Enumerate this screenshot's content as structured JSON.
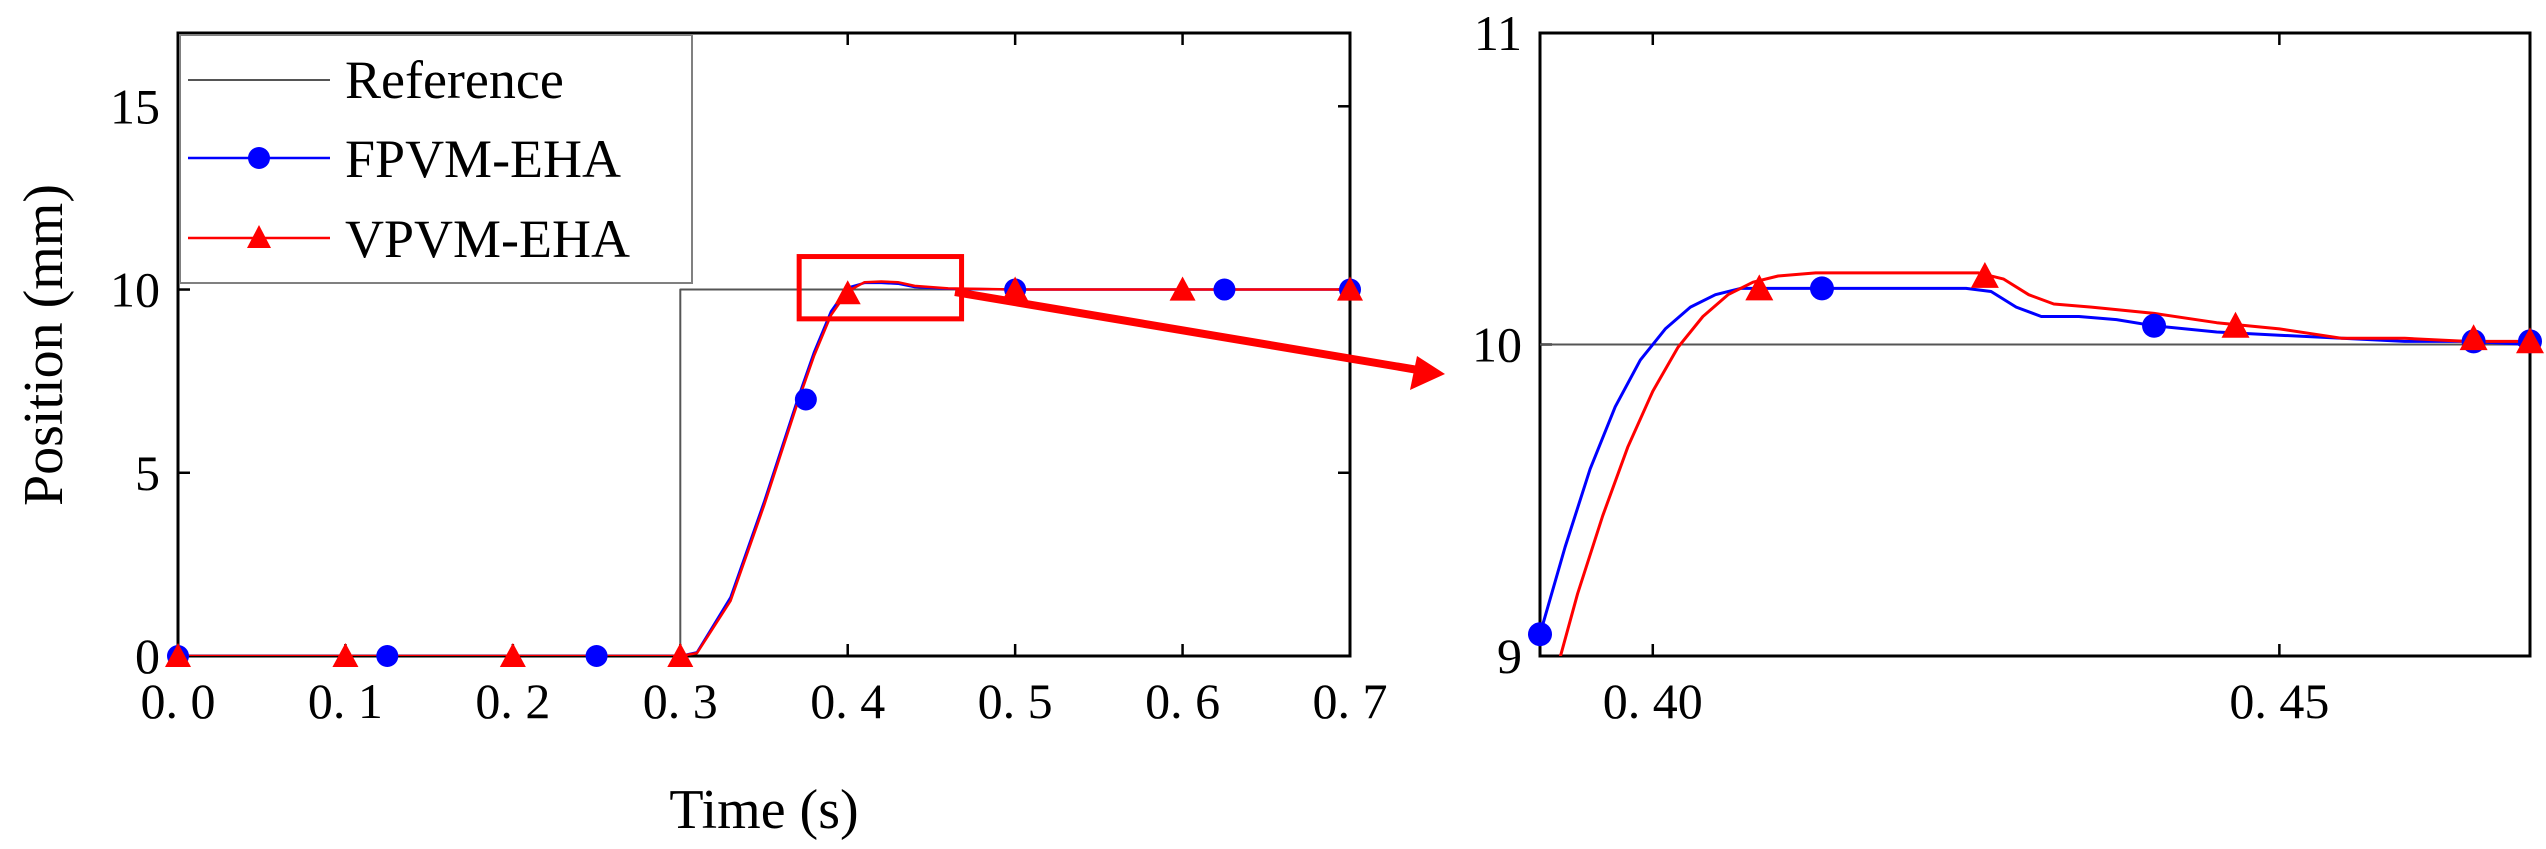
{
  "chart_data": [
    {
      "type": "line",
      "xlabel": "Time (s)",
      "ylabel": "Position (mm)",
      "xlim": [
        0,
        0.7
      ],
      "ylim": [
        0,
        17
      ],
      "x_ticks": [
        "0. 0",
        "0. 1",
        "0. 2",
        "0. 3",
        "0. 4",
        "0. 5",
        "0. 6",
        "0. 7"
      ],
      "x_tick_values": [
        0,
        0.1,
        0.2,
        0.3,
        0.4,
        0.5,
        0.6,
        0.7
      ],
      "y_ticks": [
        "0",
        "5",
        "10",
        "15"
      ],
      "y_tick_values": [
        0,
        5,
        10,
        15
      ],
      "legend": {
        "position": "top-left",
        "entries": [
          "Reference",
          "FPVM-EHA",
          "VPVM-EHA"
        ]
      },
      "series": [
        {
          "name": "Reference",
          "color": "#555555",
          "marker": "none",
          "x": [
            0,
            0.3,
            0.3,
            0.7
          ],
          "y": [
            0,
            0,
            10,
            10
          ]
        },
        {
          "name": "FPVM-EHA",
          "color": "#0000ff",
          "marker": "circle",
          "x": [
            0,
            0.3,
            0.31,
            0.33,
            0.35,
            0.37,
            0.38,
            0.39,
            0.4,
            0.41,
            0.42,
            0.43,
            0.44,
            0.46,
            0.5,
            0.6,
            0.7
          ],
          "y": [
            0,
            0,
            0.1,
            1.6,
            4.2,
            7.0,
            8.3,
            9.4,
            10.05,
            10.18,
            10.18,
            10.16,
            10.07,
            10.02,
            10.0,
            10.0,
            10.0
          ],
          "marker_x": [
            0,
            0.125,
            0.25,
            0.375,
            0.5,
            0.625,
            0.7
          ],
          "marker_y": [
            0,
            0,
            0,
            7.0,
            10.0,
            10.0,
            10.0
          ]
        },
        {
          "name": "VPVM-EHA",
          "color": "#ff0000",
          "marker": "triangle",
          "x": [
            0,
            0.3,
            0.31,
            0.33,
            0.35,
            0.37,
            0.38,
            0.39,
            0.4,
            0.41,
            0.42,
            0.43,
            0.44,
            0.46,
            0.5,
            0.6,
            0.7
          ],
          "y": [
            0,
            0,
            0.08,
            1.5,
            4.1,
            6.9,
            8.2,
            9.3,
            9.95,
            10.2,
            10.22,
            10.2,
            10.1,
            10.03,
            10.0,
            10.0,
            10.0
          ],
          "marker_x": [
            0,
            0.1,
            0.2,
            0.3,
            0.4,
            0.5,
            0.6,
            0.7
          ],
          "marker_y": [
            0,
            0,
            0,
            0,
            9.9,
            10.0,
            10.0,
            10.0
          ]
        }
      ],
      "annotations": [
        "zoom rectangle around t = 0.37–0.46 s, y ≈ 9.2–10.9 mm with red arrow to inset"
      ]
    },
    {
      "type": "line",
      "xlabel": "",
      "ylabel": "",
      "xlim": [
        0.391,
        0.47
      ],
      "ylim": [
        9,
        11
      ],
      "x_ticks": [
        "0. 40",
        "0. 45"
      ],
      "x_tick_values": [
        0.4,
        0.45
      ],
      "y_ticks": [
        "9",
        "10",
        "11"
      ],
      "y_tick_values": [
        9,
        10,
        11
      ],
      "series": [
        {
          "name": "Reference",
          "color": "#555555",
          "x": [
            0.391,
            0.47
          ],
          "y": [
            10,
            10
          ]
        },
        {
          "name": "FPVM-EHA",
          "color": "#0000ff",
          "x": [
            0.391,
            0.393,
            0.395,
            0.397,
            0.399,
            0.401,
            0.403,
            0.405,
            0.407,
            0.409,
            0.412,
            0.415,
            0.42,
            0.425,
            0.427,
            0.429,
            0.431,
            0.434,
            0.437,
            0.44,
            0.445,
            0.45,
            0.455,
            0.46,
            0.465,
            0.47
          ],
          "y": [
            9.07,
            9.35,
            9.6,
            9.8,
            9.95,
            10.05,
            10.12,
            10.16,
            10.18,
            10.18,
            10.18,
            10.18,
            10.18,
            10.18,
            10.17,
            10.12,
            10.09,
            10.09,
            10.08,
            10.06,
            10.04,
            10.03,
            10.02,
            10.01,
            10.01,
            10.0
          ],
          "marker_x": [
            0.391,
            0.4135,
            0.44,
            0.4655,
            0.47
          ],
          "marker_y": [
            9.07,
            10.18,
            10.06,
            10.01,
            10.01
          ]
        },
        {
          "name": "VPVM-EHA",
          "color": "#ff0000",
          "x": [
            0.3925,
            0.394,
            0.396,
            0.398,
            0.4,
            0.402,
            0.404,
            0.406,
            0.408,
            0.41,
            0.413,
            0.42,
            0.426,
            0.428,
            0.43,
            0.432,
            0.435,
            0.44,
            0.445,
            0.45,
            0.455,
            0.46,
            0.465,
            0.47
          ],
          "y": [
            8.98,
            9.2,
            9.45,
            9.67,
            9.85,
            9.99,
            10.09,
            10.16,
            10.2,
            10.22,
            10.23,
            10.23,
            10.23,
            10.21,
            10.16,
            10.13,
            10.12,
            10.1,
            10.07,
            10.05,
            10.02,
            10.02,
            10.01,
            10.01
          ],
          "marker_x": [
            0.4085,
            0.4265,
            0.4465,
            0.4655,
            0.47
          ],
          "marker_y": [
            10.18,
            10.22,
            10.06,
            10.02,
            10.01
          ]
        }
      ]
    }
  ]
}
